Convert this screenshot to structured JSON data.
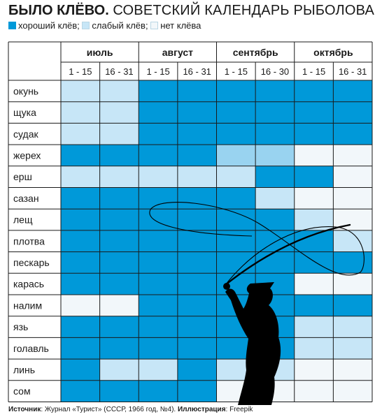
{
  "title": {
    "bold": "БЫЛО КЛЁВО.",
    "rest": "СОВЕТСКИЙ КАЛЕНДАРЬ РЫБОЛОВА"
  },
  "legend": [
    {
      "label": "хороший клёв;",
      "color": "#0099d9"
    },
    {
      "label": "слабый клёв;",
      "color": "#c7e6f7"
    },
    {
      "label": "нет клёва",
      "color": "#f2f7fa"
    }
  ],
  "colors": {
    "good": "#0099d9",
    "weak": "#c7e6f7",
    "weak_dark": "#99d3f0",
    "none": "#f2f7fa",
    "grid": "#1a1a1a",
    "silhouette": "#000000"
  },
  "chart_data": {
    "type": "table",
    "months": [
      "июль",
      "август",
      "сентябрь",
      "октябрь"
    ],
    "periods": [
      "1 - 15",
      "16 - 31",
      "1 - 15",
      "16 - 31",
      "1 - 15",
      "16 - 30",
      "1 - 15",
      "16 - 31"
    ],
    "fish": [
      "окунь",
      "щука",
      "судак",
      "жерех",
      "ерш",
      "сазан",
      "лещ",
      "плотва",
      "пескарь",
      "карась",
      "налим",
      "язь",
      "голавль",
      "линь",
      "сом"
    ],
    "ratings": [
      [
        "weak",
        "weak",
        "good",
        "good",
        "good",
        "good",
        "good",
        "good"
      ],
      [
        "weak",
        "weak",
        "good",
        "good",
        "good",
        "good",
        "good",
        "good"
      ],
      [
        "weak",
        "weak",
        "good",
        "good",
        "good",
        "good",
        "good",
        "good"
      ],
      [
        "good",
        "good",
        "good",
        "good",
        "weak_dark",
        "weak_dark",
        "none",
        "none"
      ],
      [
        "weak",
        "weak",
        "weak",
        "weak",
        "weak",
        "good",
        "good",
        "none"
      ],
      [
        "good",
        "good",
        "good",
        "good",
        "good",
        "weak",
        "none",
        "none"
      ],
      [
        "good",
        "good",
        "good",
        "good",
        "good",
        "good",
        "weak",
        "none"
      ],
      [
        "good",
        "good",
        "good",
        "good",
        "good",
        "good",
        "good",
        "weak"
      ],
      [
        "good",
        "good",
        "good",
        "good",
        "good",
        "good",
        "good",
        "good"
      ],
      [
        "good",
        "good",
        "good",
        "good",
        "good",
        "good",
        "none",
        "none"
      ],
      [
        "none",
        "none",
        "good",
        "good",
        "good",
        "good",
        "good",
        "good"
      ],
      [
        "good",
        "good",
        "good",
        "good",
        "good",
        "good",
        "weak",
        "weak"
      ],
      [
        "good",
        "good",
        "good",
        "good",
        "good",
        "good",
        "weak",
        "weak"
      ],
      [
        "good",
        "weak",
        "weak",
        "good",
        "weak",
        "weak",
        "none",
        "none"
      ],
      [
        "good",
        "good",
        "good",
        "good",
        "none",
        "none",
        "none",
        "none"
      ]
    ]
  },
  "source": {
    "label": "Источник",
    "text": ": Журнал «Турист» (СССР, 1966 год, №4). ",
    "illus_label": "Иллюстрация",
    "illus_text": ": Freepik"
  }
}
